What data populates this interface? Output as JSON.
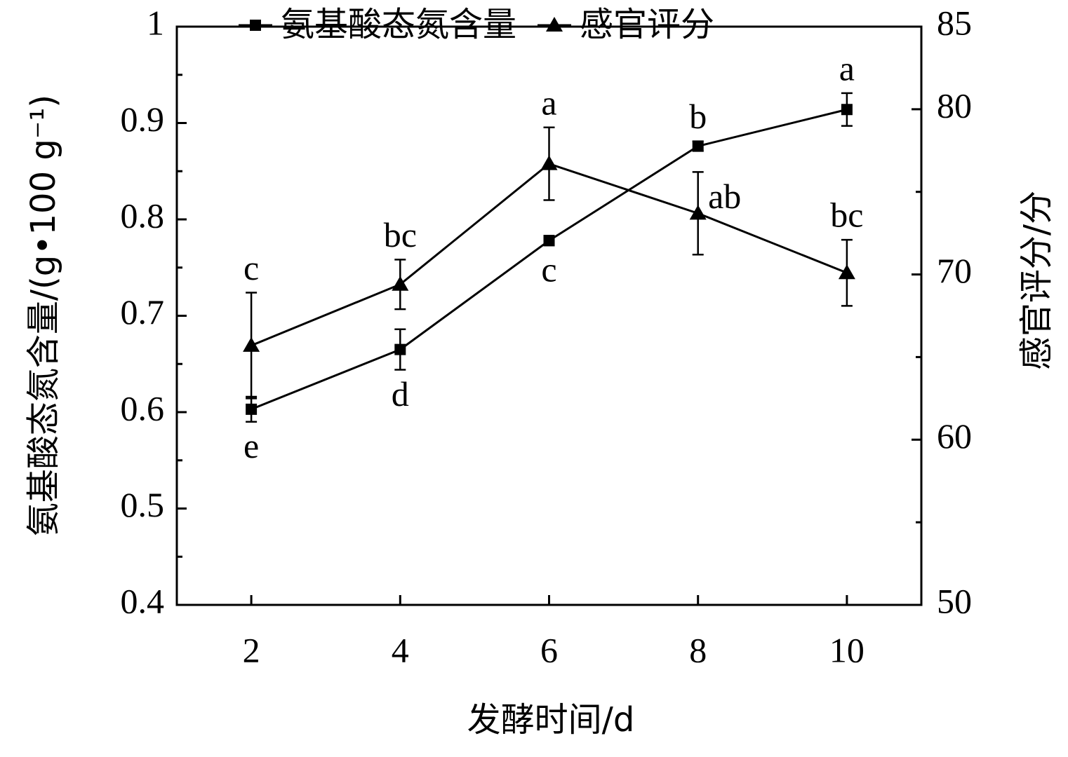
{
  "chart_data": {
    "type": "line",
    "x_label": "发酵时间/d",
    "y_label": "氨基酸态氮含量/(g•100 g⁻¹)",
    "y2_label": "感官评分/分",
    "x": [
      2,
      4,
      6,
      8,
      10
    ],
    "xlim": [
      1,
      11
    ],
    "xticks": [
      2,
      4,
      6,
      8,
      10
    ],
    "ylim": [
      0.4,
      1.0
    ],
    "yticks": [
      0.4,
      0.5,
      0.6,
      0.7,
      0.8,
      0.9,
      1.0
    ],
    "y2lim": [
      50,
      85
    ],
    "y2ticks": [
      50,
      60,
      70,
      80,
      85
    ],
    "legend": "top",
    "series": [
      {
        "name": "氨基酸态氮含量",
        "color": "#000000",
        "marker": "square",
        "values": [
          0.603,
          0.665,
          0.778,
          0.876,
          0.914
        ],
        "errors": [
          0.013,
          0.021,
          0.005,
          0.005,
          0.017
        ],
        "labels": [
          "e",
          "d",
          "c",
          "b",
          "a"
        ]
      },
      {
        "name": "感官评分",
        "color": "#000000",
        "marker": "triangle",
        "axis": "y2",
        "values": [
          65.7,
          69.4,
          76.7,
          73.7,
          70.1
        ],
        "errors": [
          3.2,
          1.5,
          2.2,
          2.5,
          2.0
        ],
        "labels": [
          "c",
          "bc",
          "a",
          "ab",
          "bc"
        ]
      }
    ]
  }
}
